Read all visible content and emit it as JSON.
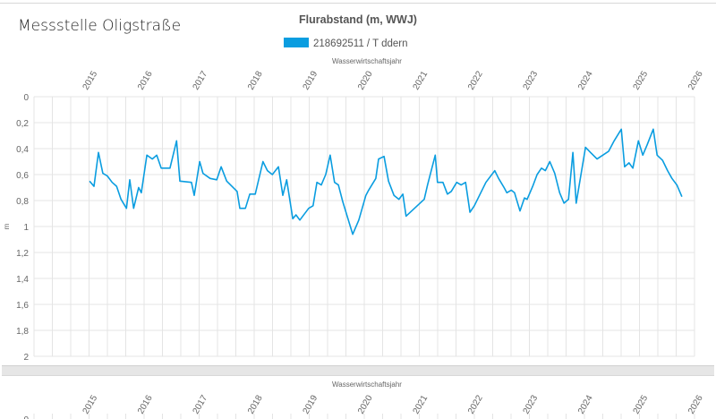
{
  "page": {
    "title": "Messstelle Oligstraße"
  },
  "chart_data": {
    "type": "line",
    "title": "Flurabstand (m, WWJ)",
    "xlabel": "Wasserwirtschaftsjahr",
    "ylabel": "m",
    "xlim": [
      2014,
      2026
    ],
    "ylim": [
      0,
      2
    ],
    "y_inverted": true,
    "grid": true,
    "legend_position": "top-center",
    "x_ticks": [
      "2015",
      "2016",
      "2017",
      "2018",
      "2019",
      "2020",
      "2021",
      "2022",
      "2023",
      "2024",
      "2025",
      "2026"
    ],
    "y_ticks": [
      "0",
      "0,2",
      "0,4",
      "0,6",
      "0,8",
      "1",
      "1,2",
      "1,4",
      "1,6",
      "1,8",
      "2"
    ],
    "colors": {
      "series": "#0a9de0",
      "grid": "#e4e4e4",
      "axis_text": "#666666"
    },
    "series": [
      {
        "name": "218692511 / T ddern",
        "x": [
          2015.01,
          2015.09,
          2015.17,
          2015.25,
          2015.33,
          2015.42,
          2015.5,
          2015.58,
          2015.68,
          2015.74,
          2015.81,
          2015.9,
          2015.95,
          2016.05,
          2016.15,
          2016.23,
          2016.31,
          2016.47,
          2016.59,
          2016.65,
          2016.86,
          2016.91,
          2017.01,
          2017.07,
          2017.2,
          2017.32,
          2017.4,
          2017.5,
          2017.69,
          2017.74,
          2017.84,
          2017.92,
          2018.02,
          2018.16,
          2018.24,
          2018.33,
          2018.44,
          2018.52,
          2018.59,
          2018.7,
          2018.76,
          2018.83,
          2018.99,
          2019.07,
          2019.14,
          2019.22,
          2019.3,
          2019.38,
          2019.46,
          2019.53,
          2019.61,
          2019.79,
          2019.9,
          2020.03,
          2020.08,
          2020.21,
          2020.26,
          2020.36,
          2020.44,
          2020.54,
          2020.63,
          2020.7,
          2020.76,
          2021.09,
          2021.15,
          2021.29,
          2021.33,
          2021.43,
          2021.51,
          2021.58,
          2021.68,
          2021.76,
          2021.84,
          2021.92,
          2022.0,
          2022.21,
          2022.37,
          2022.44,
          2022.54,
          2022.59,
          2022.67,
          2022.73,
          2022.83,
          2022.91,
          2022.96,
          2023.06,
          2023.14,
          2023.22,
          2023.29,
          2023.37,
          2023.46,
          2023.55,
          2023.63,
          2023.71,
          2023.79,
          2023.85,
          2024.02,
          2024.11,
          2024.23,
          2024.44,
          2024.54,
          2024.67,
          2024.73,
          2024.81,
          2024.88,
          2024.98,
          2025.06,
          2025.14,
          2025.25,
          2025.32,
          2025.42,
          2025.51,
          2025.59,
          2025.68,
          2025.77
        ],
        "values": [
          0.65,
          0.69,
          0.43,
          0.59,
          0.61,
          0.66,
          0.69,
          0.79,
          0.86,
          0.64,
          0.86,
          0.7,
          0.74,
          0.45,
          0.48,
          0.45,
          0.55,
          0.55,
          0.34,
          0.65,
          0.66,
          0.76,
          0.5,
          0.59,
          0.63,
          0.64,
          0.54,
          0.65,
          0.73,
          0.86,
          0.86,
          0.75,
          0.75,
          0.5,
          0.57,
          0.6,
          0.54,
          0.76,
          0.64,
          0.94,
          0.91,
          0.95,
          0.86,
          0.84,
          0.66,
          0.68,
          0.6,
          0.45,
          0.66,
          0.68,
          0.81,
          1.06,
          0.95,
          0.76,
          0.72,
          0.63,
          0.48,
          0.46,
          0.65,
          0.76,
          0.79,
          0.75,
          0.92,
          0.79,
          0.68,
          0.45,
          0.66,
          0.66,
          0.75,
          0.73,
          0.66,
          0.68,
          0.66,
          0.89,
          0.84,
          0.66,
          0.57,
          0.63,
          0.7,
          0.74,
          0.72,
          0.74,
          0.88,
          0.78,
          0.79,
          0.69,
          0.6,
          0.55,
          0.57,
          0.5,
          0.59,
          0.74,
          0.82,
          0.79,
          0.43,
          0.82,
          0.39,
          0.43,
          0.48,
          0.42,
          0.34,
          0.25,
          0.54,
          0.51,
          0.55,
          0.34,
          0.45,
          0.37,
          0.25,
          0.45,
          0.49,
          0.57,
          0.63,
          0.68,
          0.77
        ]
      }
    ]
  }
}
